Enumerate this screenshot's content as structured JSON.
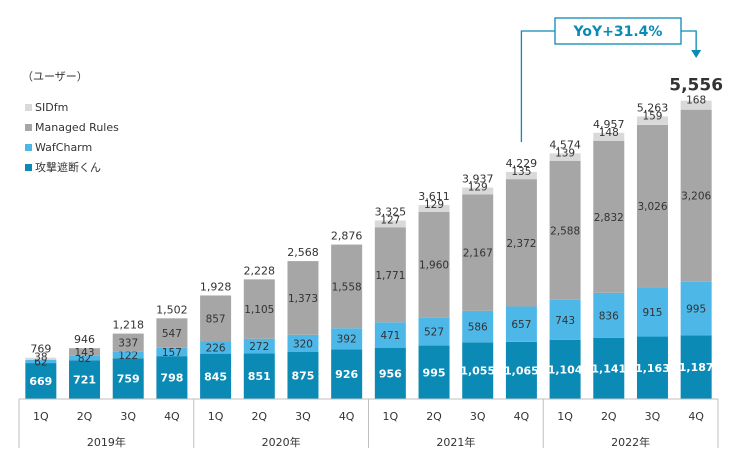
{
  "chart_data": {
    "type": "bar",
    "stacked": true,
    "unit_label": "（ユーザー）",
    "categories": [
      "1Q",
      "2Q",
      "3Q",
      "4Q",
      "1Q",
      "2Q",
      "3Q",
      "4Q",
      "1Q",
      "2Q",
      "3Q",
      "4Q",
      "1Q",
      "2Q",
      "3Q",
      "4Q"
    ],
    "year_groups": [
      {
        "label": "2019年",
        "span": 4
      },
      {
        "label": "2020年",
        "span": 4
      },
      {
        "label": "2021年",
        "span": 4
      },
      {
        "label": "2022年",
        "span": 4
      }
    ],
    "series": [
      {
        "name": "攻撃遮断くん",
        "color": "#0a8ab5",
        "values": [
          669,
          721,
          759,
          798,
          845,
          851,
          875,
          926,
          956,
          995,
          1055,
          1065,
          1104,
          1141,
          1163,
          1187
        ],
        "labels": [
          "669",
          "721",
          "759",
          "798",
          "845",
          "851",
          "875",
          "926",
          "956",
          "995",
          "1,055",
          "1,065",
          "1,104",
          "1,141",
          "1,163",
          "1,187"
        ]
      },
      {
        "name": "WafCharm",
        "color": "#4db8e8",
        "values": [
          62,
          82,
          122,
          157,
          226,
          272,
          320,
          392,
          471,
          527,
          586,
          657,
          743,
          836,
          915,
          995
        ],
        "labels": [
          "62",
          "82",
          "122",
          "157",
          "226",
          "272",
          "320",
          "392",
          "471",
          "527",
          "586",
          "657",
          "743",
          "836",
          "915",
          "995"
        ]
      },
      {
        "name": "Managed Rules",
        "color": "#a6a6a6",
        "values": [
          0,
          143,
          337,
          547,
          857,
          1105,
          1373,
          1558,
          1771,
          1960,
          2167,
          2372,
          2588,
          2832,
          3026,
          3206
        ],
        "labels": [
          "",
          "143",
          "337",
          "547",
          "857",
          "1,105",
          "1,373",
          "1,558",
          "1,771",
          "1,960",
          "2,167",
          "2,372",
          "2,588",
          "2,832",
          "3,026",
          "3,206"
        ]
      },
      {
        "name": "SIDfm",
        "color": "#d9d9d9",
        "values": [
          38,
          0,
          0,
          0,
          0,
          0,
          0,
          0,
          127,
          129,
          129,
          135,
          139,
          148,
          159,
          168
        ],
        "labels": [
          "38",
          "",
          "",
          "",
          "",
          "",
          "",
          "",
          "127",
          "129",
          "129",
          "135",
          "139",
          "148",
          "159",
          "168"
        ]
      }
    ],
    "totals": [
      "769",
      "946",
      "1,218",
      "1,502",
      "1,928",
      "2,228",
      "2,568",
      "2,876",
      "3,325",
      "3,611",
      "3,937",
      "4,229",
      "4,574",
      "4,957",
      "5,263",
      "5,556"
    ],
    "legend_order": [
      "SIDfm",
      "Managed Rules",
      "WafCharm",
      "攻撃遮断くん"
    ],
    "legend_position": "top-left",
    "ylim": [
      0,
      6000
    ],
    "grid": false,
    "annotation": {
      "text": "YoY+31.4%",
      "from_index": 11,
      "to_index": 15,
      "color": "#0a8ab5"
    }
  }
}
